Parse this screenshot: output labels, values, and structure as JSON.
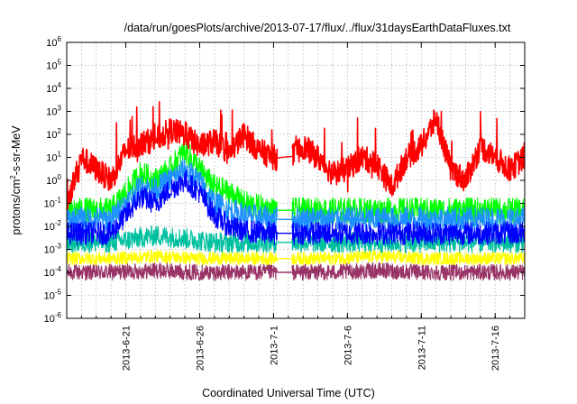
{
  "chart_data": {
    "type": "line",
    "title": "/data/run/goesPlots/archive/2013-07-17/flux/../flux/31daysEarthDataFluxes.txt",
    "xlabel": "Coordinated Universal Time (UTC)",
    "ylabel": "protons/cm²-s-sr-MeV",
    "ylabel_parts": {
      "base": "protons/cm",
      "sup": "2",
      "rest": "-s-sr-MeV"
    },
    "y_scale": "log",
    "ylim": [
      1e-06,
      1000000.0
    ],
    "y_ticks": [
      {
        "base": "10",
        "exp": "-6",
        "value": -6
      },
      {
        "base": "10",
        "exp": "-5",
        "value": -5
      },
      {
        "base": "10",
        "exp": "-4",
        "value": -4
      },
      {
        "base": "10",
        "exp": "-3",
        "value": -3
      },
      {
        "base": "10",
        "exp": "-2",
        "value": -2
      },
      {
        "base": "10",
        "exp": "-1",
        "value": -1
      },
      {
        "base": "10",
        "exp": "0",
        "value": 0
      },
      {
        "base": "10",
        "exp": "1",
        "value": 1
      },
      {
        "base": "10",
        "exp": "2",
        "value": 2
      },
      {
        "base": "10",
        "exp": "3",
        "value": 3
      },
      {
        "base": "10",
        "exp": "4",
        "value": 4
      },
      {
        "base": "10",
        "exp": "5",
        "value": 5
      },
      {
        "base": "10",
        "exp": "6",
        "value": 6
      }
    ],
    "xlim": [
      "2013-06-17",
      "2013-07-18"
    ],
    "x_ticks": [
      {
        "label": "2013-6-21",
        "value": "2013-06-21"
      },
      {
        "label": "2013-6-26",
        "value": "2013-06-26"
      },
      {
        "label": "2013-7-1",
        "value": "2013-07-01"
      },
      {
        "label": "2013-7-6",
        "value": "2013-07-06"
      },
      {
        "label": "2013-7-11",
        "value": "2013-07-11"
      },
      {
        "label": "2013-7-16",
        "value": "2013-07-16"
      }
    ],
    "grid": true,
    "data_gap": [
      "2013-07-01",
      "2013-07-02"
    ],
    "series": [
      {
        "color": "#993366",
        "x": [
          "2013-06-17",
          "2013-06-20",
          "2013-06-23",
          "2013-06-26",
          "2013-06-29",
          "2013-07-01",
          "2013-07-02",
          "2013-07-05",
          "2013-07-08",
          "2013-07-11",
          "2013-07-14",
          "2013-07-18"
        ],
        "y": [
          0.0001,
          0.0001,
          0.00012,
          0.0001,
          0.0001,
          0.0001,
          0.0001,
          0.0001,
          0.00012,
          0.0001,
          0.0001,
          0.0001
        ]
      },
      {
        "color": "#ffff00",
        "x": [
          "2013-06-17",
          "2013-06-20",
          "2013-06-23",
          "2013-06-26",
          "2013-06-29",
          "2013-07-01",
          "2013-07-02",
          "2013-07-05",
          "2013-07-08",
          "2013-07-11",
          "2013-07-14",
          "2013-07-18"
        ],
        "y": [
          0.0004,
          0.0004,
          0.0005,
          0.0004,
          0.0004,
          0.0004,
          0.0004,
          0.0004,
          0.0005,
          0.0004,
          0.0004,
          0.0004
        ]
      },
      {
        "color": "#00c0a0",
        "x": [
          "2013-06-17",
          "2013-06-20",
          "2013-06-23",
          "2013-06-25",
          "2013-06-27",
          "2013-06-29",
          "2013-07-01",
          "2013-07-02",
          "2013-07-05",
          "2013-07-08",
          "2013-07-11",
          "2013-07-14",
          "2013-07-18"
        ],
        "y": [
          0.002,
          0.002,
          0.004,
          0.003,
          0.002,
          0.002,
          0.002,
          0.002,
          0.002,
          0.002,
          0.002,
          0.002,
          0.002
        ]
      },
      {
        "color": "#00ff00",
        "x": [
          "2013-06-17",
          "2013-06-20",
          "2013-06-21",
          "2013-06-22",
          "2013-06-23",
          "2013-06-24",
          "2013-06-25",
          "2013-06-26",
          "2013-06-27",
          "2013-06-28",
          "2013-06-29",
          "2013-07-01",
          "2013-07-02",
          "2013-07-05",
          "2013-07-08",
          "2013-07-11",
          "2013-07-14",
          "2013-07-18"
        ],
        "y": [
          0.05,
          0.05,
          0.3,
          2,
          1,
          3,
          20,
          3,
          0.5,
          0.3,
          0.1,
          0.05,
          0.05,
          0.05,
          0.05,
          0.05,
          0.05,
          0.05
        ]
      },
      {
        "color": "#1e90ff",
        "x": [
          "2013-06-17",
          "2013-06-20",
          "2013-06-21",
          "2013-06-22",
          "2013-06-23",
          "2013-06-24",
          "2013-06-25",
          "2013-06-26",
          "2013-06-27",
          "2013-06-28",
          "2013-06-29",
          "2013-07-01",
          "2013-07-02",
          "2013-07-05",
          "2013-07-08",
          "2013-07-11",
          "2013-07-14",
          "2013-07-18"
        ],
        "y": [
          0.02,
          0.02,
          0.1,
          0.5,
          0.4,
          1,
          3,
          0.8,
          0.1,
          0.05,
          0.03,
          0.02,
          0.02,
          0.02,
          0.02,
          0.02,
          0.02,
          0.02
        ]
      },
      {
        "color": "#0000ff",
        "x": [
          "2013-06-17",
          "2013-06-20",
          "2013-06-21",
          "2013-06-22",
          "2013-06-23",
          "2013-06-24",
          "2013-06-25",
          "2013-06-26",
          "2013-06-27",
          "2013-06-28",
          "2013-06-29",
          "2013-07-01",
          "2013-07-02",
          "2013-07-05",
          "2013-07-08",
          "2013-07-11",
          "2013-07-14",
          "2013-07-18"
        ],
        "y": [
          0.005,
          0.005,
          0.03,
          0.2,
          0.1,
          0.4,
          1,
          0.3,
          0.03,
          0.01,
          0.006,
          0.005,
          0.005,
          0.005,
          0.005,
          0.005,
          0.005,
          0.005
        ]
      },
      {
        "color": "#ff0000",
        "x": [
          "2013-06-17",
          "2013-06-18",
          "2013-06-19",
          "2013-06-20",
          "2013-06-21",
          "2013-06-22",
          "2013-06-23",
          "2013-06-24",
          "2013-06-25",
          "2013-06-26",
          "2013-06-27",
          "2013-06-28",
          "2013-06-29",
          "2013-06-30",
          "2013-07-01",
          "2013-07-02",
          "2013-07-03",
          "2013-07-04",
          "2013-07-05",
          "2013-07-06",
          "2013-07-07",
          "2013-07-08",
          "2013-07-09",
          "2013-07-10",
          "2013-07-11",
          "2013-07-12",
          "2013-07-13",
          "2013-07-14",
          "2013-07-15",
          "2013-07-16",
          "2013-07-17",
          "2013-07-18"
        ],
        "y": [
          0.1,
          10,
          3,
          1,
          20,
          40,
          60,
          150,
          100,
          30,
          50,
          15,
          100,
          20,
          10,
          8,
          30,
          10,
          2,
          3,
          10,
          5,
          0.5,
          10,
          30,
          500,
          3,
          1,
          30,
          10,
          3,
          10
        ]
      }
    ]
  }
}
